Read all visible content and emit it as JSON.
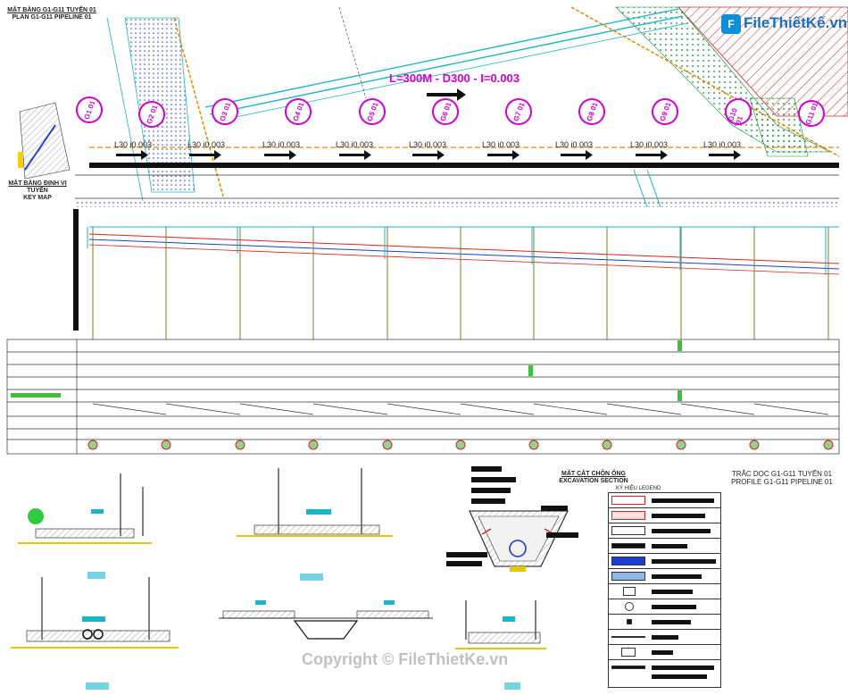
{
  "logo": {
    "text": "FileThiếtKế.vn",
    "mark": "F"
  },
  "plan_title": {
    "line1": "MẶT BẰNG G1-G11 TUYẾN 01",
    "line2": "PLAN G1-G11 PIPELINE 01"
  },
  "keymap_title": {
    "line1": "MẶT BẰNG ĐỊNH VỊ",
    "line2": "TUYẾN",
    "line3": "KEY MAP"
  },
  "pipe_spec": "L=300M - D300 - I=0.003",
  "segment_label": "L30 i0.003",
  "manholes": [
    "G1 01",
    "G2 01",
    "G3 01",
    "G4 01",
    "G5 01",
    "G6 01",
    "G7 01",
    "G8 01",
    "G9 01",
    "G10 01",
    "G11 01"
  ],
  "excavation": {
    "line1": "MẶT CẮT CHÔN ỐNG",
    "line2": "EXCAVATION SECTION"
  },
  "profile_title": {
    "line1": "TRẮC DỌC G1-G11 TUYẾN 01",
    "line2": "PROFILE G1-G11 PIPELINE 01"
  },
  "legend_title": "KÝ HIỆU LEGEND",
  "watermark": "Copyright © FileThietKe.vn",
  "colors": {
    "magenta": "#d400d4",
    "green": "#00b000",
    "cyan": "#1ab5c9",
    "red": "#e02020",
    "orange": "#e88a00",
    "blue": "#1a3fd0"
  }
}
